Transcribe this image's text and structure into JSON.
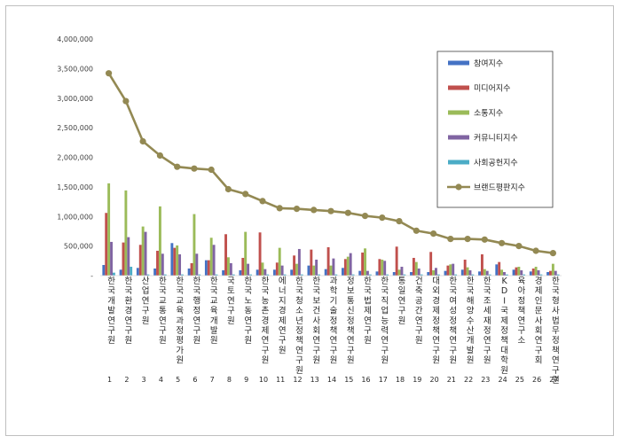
{
  "chart_data": {
    "type": "bar",
    "title": "",
    "xlabel": "",
    "ylabel": "",
    "ylim": [
      0,
      4000000
    ],
    "yticks": [
      "-",
      "500,000",
      "1,000,000",
      "1,500,000",
      "2,000,000",
      "2,500,000",
      "3,000,000",
      "3,500,000",
      "4,000,000"
    ],
    "grid": false,
    "legend_position": "top-right",
    "categories": [
      "한국개발연구원",
      "한국환경연구원",
      "산업연구원",
      "한국교통연구원",
      "한국교육과정평가원",
      "한국행정연구원",
      "한국교육개발원",
      "국토연구원",
      "한국노동연구원",
      "한국농촌경제연구원",
      "에너지경제연구원",
      "한국청소년정책연구원",
      "한국보건사회연구원",
      "과학기술정책연구원",
      "정보통신정책연구원",
      "한국법제연구원",
      "한국직업능력연구원",
      "통일연구원",
      "건축공간연구원",
      "대외경제정책연구원",
      "한국여성정책연구원",
      "한국해양수산개발원",
      "한국조세재정연구원",
      "KDI국제정책대학원",
      "육아정책연구소",
      "경제인문사회연구회",
      "한국형사법무정책연구원"
    ],
    "indices": [
      "1",
      "2",
      "3",
      "4",
      "5",
      "6",
      "7",
      "8",
      "9",
      "10",
      "11",
      "12",
      "13",
      "14",
      "15",
      "16",
      "17",
      "18",
      "19",
      "20",
      "21",
      "22",
      "23",
      "24",
      "25",
      "26",
      "27"
    ],
    "series": [
      {
        "name": "참여지수",
        "color": "#4472c4",
        "type": "bar",
        "values": [
          180000,
          100000,
          130000,
          120000,
          550000,
          120000,
          260000,
          90000,
          90000,
          100000,
          100000,
          100000,
          170000,
          110000,
          130000,
          80000,
          70000,
          60000,
          60000,
          60000,
          80000,
          100000,
          70000,
          190000,
          100000,
          70000,
          60000
        ]
      },
      {
        "name": "미디어지수",
        "color": "#c0504d",
        "type": "bar",
        "values": [
          1060000,
          560000,
          520000,
          420000,
          470000,
          210000,
          260000,
          700000,
          300000,
          730000,
          220000,
          340000,
          440000,
          480000,
          280000,
          390000,
          280000,
          490000,
          300000,
          400000,
          170000,
          270000,
          360000,
          230000,
          140000,
          120000,
          80000
        ]
      },
      {
        "name": "소통지수",
        "color": "#9bbb59",
        "type": "bar",
        "values": [
          1560000,
          1440000,
          830000,
          1170000,
          510000,
          1040000,
          640000,
          310000,
          740000,
          220000,
          470000,
          200000,
          170000,
          170000,
          320000,
          460000,
          270000,
          100000,
          230000,
          90000,
          190000,
          140000,
          110000,
          100000,
          150000,
          150000,
          200000
        ]
      },
      {
        "name": "커뮤니티지수",
        "color": "#8064a2",
        "type": "bar",
        "values": [
          570000,
          650000,
          740000,
          370000,
          360000,
          370000,
          520000,
          210000,
          200000,
          110000,
          170000,
          450000,
          270000,
          290000,
          380000,
          80000,
          250000,
          150000,
          120000,
          130000,
          200000,
          90000,
          80000,
          60000,
          90000,
          90000,
          80000
        ]
      },
      {
        "name": "사회공헌지수",
        "color": "#4bacc6",
        "type": "bar",
        "values": [
          50000,
          150000,
          20000,
          20000,
          20000,
          20000,
          20000,
          20000,
          20000,
          20000,
          20000,
          20000,
          20000,
          20000,
          20000,
          20000,
          20000,
          20000,
          20000,
          20000,
          20000,
          20000,
          20000,
          20000,
          20000,
          20000,
          20000
        ]
      },
      {
        "name": "브랜드평판지수",
        "color": "#938953",
        "type": "line",
        "values": [
          3420000,
          2950000,
          2270000,
          2030000,
          1840000,
          1810000,
          1790000,
          1460000,
          1380000,
          1260000,
          1140000,
          1130000,
          1110000,
          1090000,
          1060000,
          1010000,
          980000,
          920000,
          760000,
          710000,
          620000,
          620000,
          610000,
          550000,
          500000,
          420000,
          380000
        ]
      }
    ]
  }
}
